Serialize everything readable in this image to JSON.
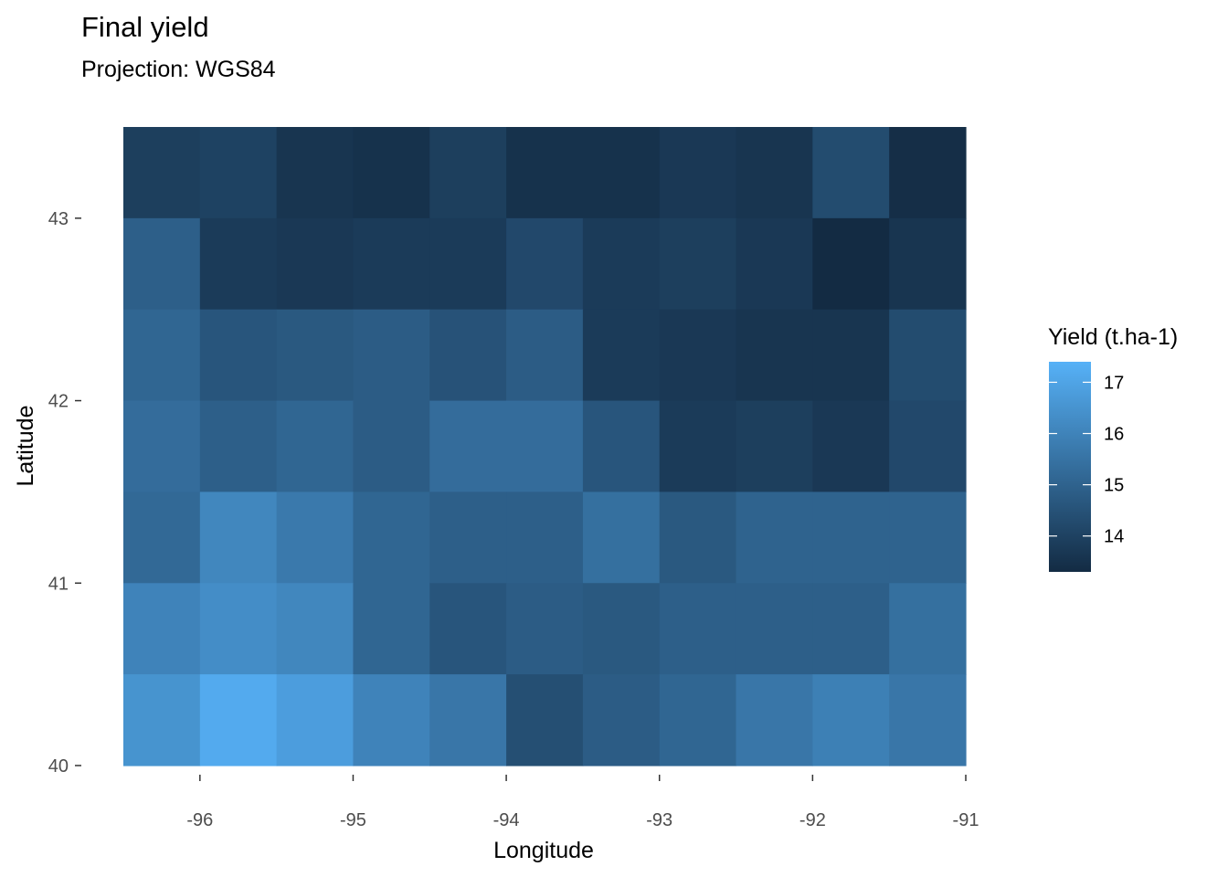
{
  "chart_data": {
    "type": "heatmap",
    "title": "Final yield",
    "subtitle": "Projection: WGS84",
    "xlabel": "Longitude",
    "ylabel": "Latitude",
    "xlim": [
      -96.5,
      -91
    ],
    "ylim": [
      40,
      43.5
    ],
    "x_ticks": [
      -96,
      -95,
      -94,
      -93,
      -92,
      -91
    ],
    "y_ticks": [
      40,
      41,
      42,
      43
    ],
    "x_centers": [
      -96.25,
      -95.75,
      -95.25,
      -94.75,
      -94.25,
      -93.75,
      -93.25,
      -92.75,
      -92.25,
      -91.75,
      -91.25
    ],
    "y_centers": [
      43.25,
      42.75,
      42.25,
      41.75,
      41.25,
      40.75,
      40.25
    ],
    "values": [
      [
        13.9,
        14.0,
        13.6,
        13.5,
        13.9,
        13.5,
        13.5,
        13.7,
        13.6,
        14.3,
        13.4
      ],
      [
        14.9,
        13.8,
        13.7,
        13.8,
        13.8,
        14.2,
        13.8,
        13.9,
        13.7,
        13.3,
        13.6
      ],
      [
        15.1,
        14.6,
        14.7,
        14.8,
        14.5,
        14.8,
        13.8,
        13.7,
        13.6,
        13.6,
        14.3
      ],
      [
        15.3,
        14.9,
        15.1,
        14.8,
        15.3,
        15.3,
        14.6,
        13.8,
        13.9,
        13.7,
        14.2
      ],
      [
        15.2,
        16.1,
        15.7,
        15.1,
        14.9,
        14.9,
        15.4,
        14.7,
        15.0,
        15.0,
        15.0
      ],
      [
        16.0,
        16.3,
        16.1,
        15.1,
        14.6,
        14.8,
        14.7,
        14.9,
        14.9,
        14.9,
        15.4
      ],
      [
        16.5,
        17.2,
        16.8,
        16.0,
        15.6,
        14.4,
        14.8,
        15.1,
        15.6,
        15.9,
        15.6
      ]
    ],
    "legend": {
      "title": "Yield (t.ha-1)",
      "breaks": [
        17,
        16,
        15,
        14
      ],
      "range": [
        13.3,
        17.4
      ],
      "position": "right"
    },
    "colors": {
      "low": "#132B43",
      "high": "#56B1F7"
    },
    "grid": false
  }
}
